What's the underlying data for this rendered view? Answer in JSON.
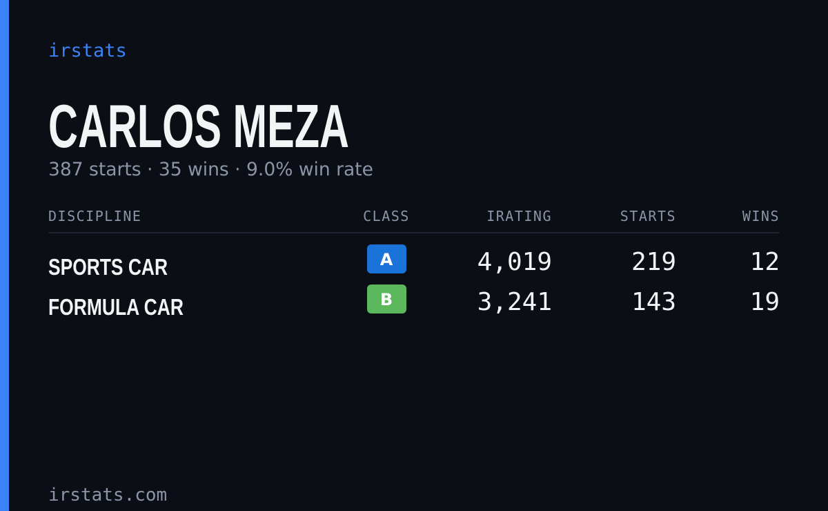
{
  "brand": "irstats",
  "driver": {
    "name": "CARLOS MEZA",
    "summary": "387 starts · 35 wins · 9.0% win rate"
  },
  "table": {
    "headers": [
      "DISCIPLINE",
      "CLASS",
      "IRATING",
      "STARTS",
      "WINS"
    ],
    "rows": [
      [
        "SPORTS CAR",
        "A",
        "4,019",
        "219",
        "12"
      ],
      [
        "FORMULA CAR",
        "B",
        "3,241",
        "143",
        "19"
      ]
    ]
  },
  "footer": "irstats.com"
}
